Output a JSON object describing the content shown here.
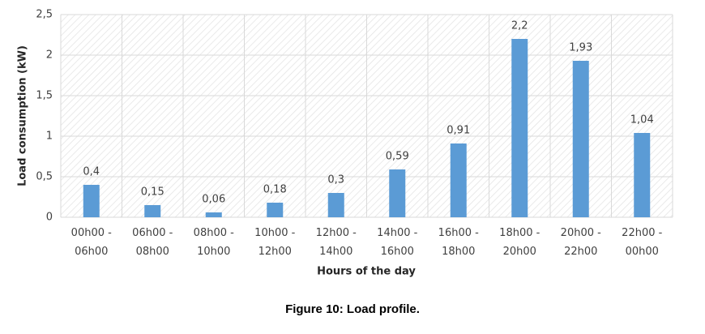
{
  "chart_data": {
    "type": "bar",
    "y_label": "Load consumption (kW)",
    "x_label": "Hours of the day",
    "caption": "Figure 10: Load profile.",
    "categories": [
      "00h00 - 06h00",
      "06h00 - 08h00",
      "08h00 - 10h00",
      "10h00 - 12h00",
      "12h00 - 14h00",
      "14h00 - 16h00",
      "16h00 - 18h00",
      "18h00 - 20h00",
      "20h00 - 22h00",
      "22h00 - 00h00"
    ],
    "values": [
      0.4,
      0.15,
      0.06,
      0.18,
      0.3,
      0.59,
      0.91,
      2.2,
      1.93,
      1.04
    ],
    "value_labels": [
      "0,4",
      "0,15",
      "0,06",
      "0,18",
      "0,3",
      "0,59",
      "0,91",
      "2,2",
      "1,93",
      "1,04"
    ],
    "color": "#5b9bd5",
    "ylim": [
      0,
      2.5
    ],
    "yticks": [
      0,
      {
        "value": 0.5,
        "label": "0,5"
      },
      1,
      {
        "value": 1.5,
        "label": "1,5"
      },
      2,
      {
        "value": 2.5,
        "label": "2,5"
      }
    ],
    "grid": true
  }
}
